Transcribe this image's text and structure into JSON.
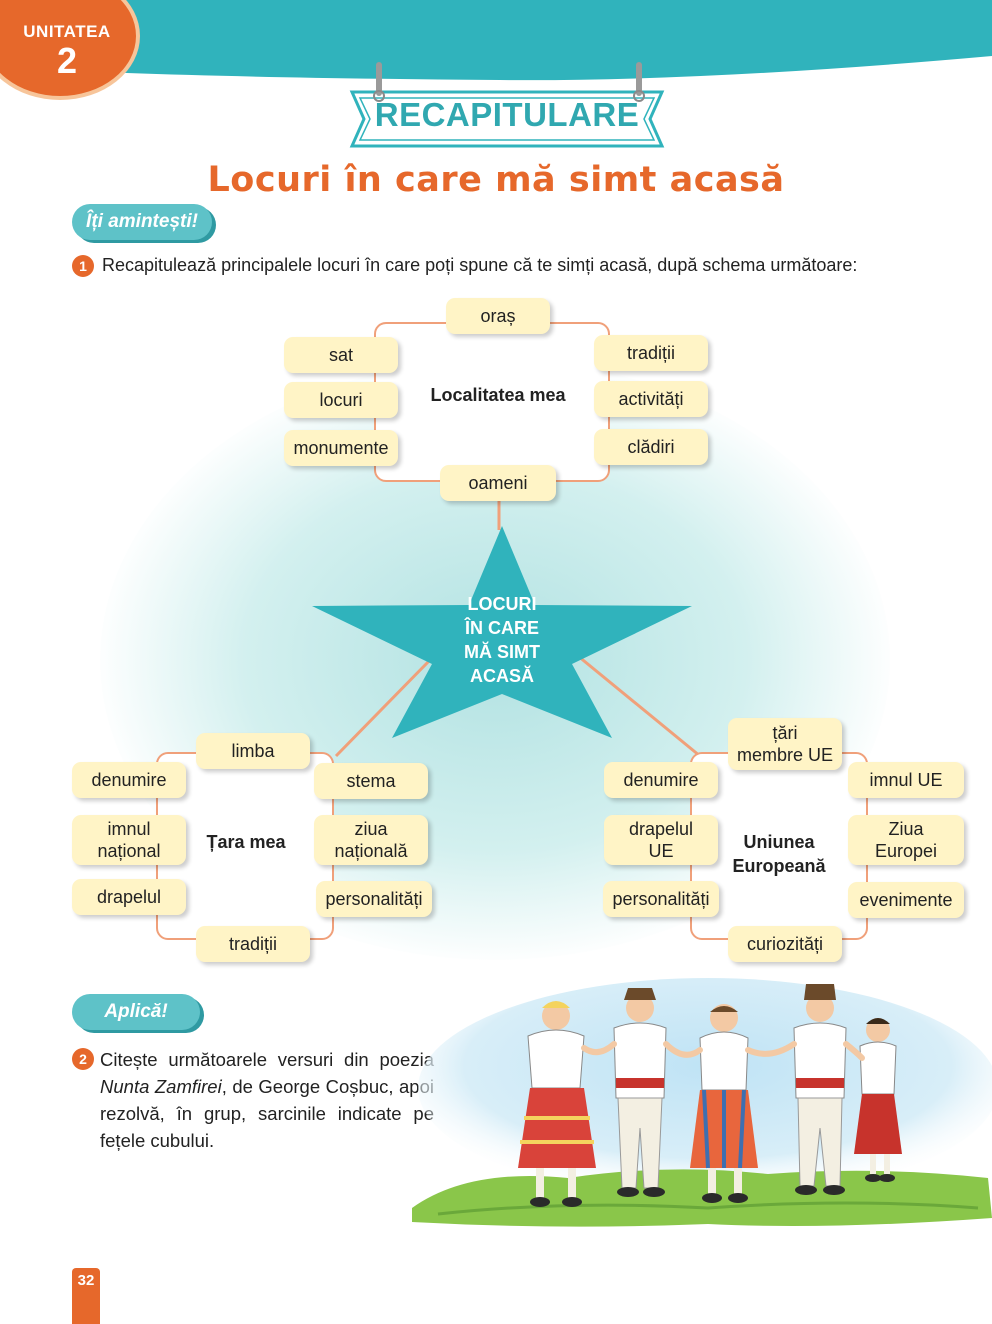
{
  "colors": {
    "teal": "#30b3bc",
    "orange": "#e6682b",
    "box_fill": "#fff4c6",
    "frame": "#f0a07a"
  },
  "header": {
    "unit_label": "UNITATEA",
    "unit_number": "2",
    "banner_title": "RECAPITULARE",
    "subtitle": "Locuri în care mă simt acasă"
  },
  "section1": {
    "pill": "Îți amintești!",
    "exercise_number": "1",
    "instruction": "Recapitulează principalele locuri în care poți spune că te simți acasă, după schema următoare:"
  },
  "diagram": {
    "center": [
      "LOCURI",
      "ÎN CARE",
      "MĂ SIMT",
      "ACASĂ"
    ],
    "localitatea": {
      "title": "Localitatea mea",
      "items": {
        "top": "oraș",
        "left1": "sat",
        "left2": "locuri",
        "left3": "monumente",
        "right1": "tradiții",
        "right2": "activități",
        "right3": "clădiri",
        "bottom": "oameni"
      }
    },
    "tara": {
      "title": "Țara mea",
      "items": {
        "top": "limba",
        "left1": "denumire",
        "left2a": "imnul",
        "left2b": "național",
        "left3": "drapelul",
        "right1": "stema",
        "right2a": "ziua",
        "right2b": "națională",
        "right3": "personalități",
        "bottom": "tradiții"
      }
    },
    "ue": {
      "title_line1": "Uniunea",
      "title_line2": "Europeană",
      "items": {
        "top_a": "țări",
        "top_b": "membre UE",
        "left1": "denumire",
        "left2a": "drapelul",
        "left2b": "UE",
        "left3": "personalități",
        "right1": "imnul UE",
        "right2a": "Ziua",
        "right2b": "Europei",
        "right3": "evenimente",
        "bottom": "curiozități"
      }
    }
  },
  "section2": {
    "pill": "Aplică!",
    "exercise_number": "2",
    "text_before": "Citește următoarele versuri din poezia ",
    "poem_title": "Nunta Zamfirei",
    "text_after": ", de George Coșbuc, apoi rezolvă, în grup, sarcinile indicate pe fețele cubului."
  },
  "page_number": "32"
}
